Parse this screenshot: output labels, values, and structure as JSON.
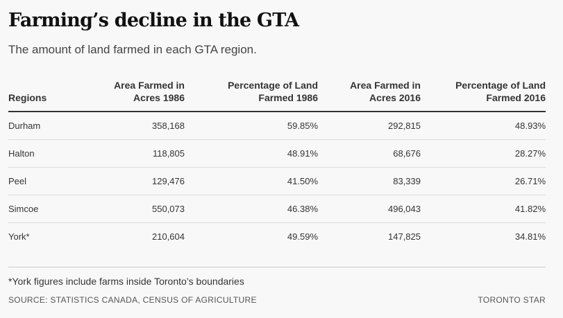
{
  "title": "Farming’s decline in the GTA",
  "subtitle": "The amount of land farmed in each GTA region.",
  "chart_data": {
    "type": "table",
    "columns": [
      "Regions",
      "Area Farmed in Acres 1986",
      "Percentage of Land Farmed 1986",
      "Area Farmed in Acres 2016",
      "Percentage of Land Farmed 2016"
    ],
    "header_lines": [
      [
        "",
        "Regions"
      ],
      [
        "Area Farmed in",
        "Acres 1986"
      ],
      [
        "Percentage of Land",
        "Farmed 1986"
      ],
      [
        "Area Farmed in",
        "Acres 2016"
      ],
      [
        "Percentage of Land",
        "Farmed 2016"
      ]
    ],
    "rows": [
      [
        "Durham",
        "358,168",
        "59.85%",
        "292,815",
        "48.93%"
      ],
      [
        "Halton",
        "118,805",
        "48.91%",
        "68,676",
        "28.27%"
      ],
      [
        "Peel",
        "129,476",
        "41.50%",
        "83,339",
        "26.71%"
      ],
      [
        "Simcoe",
        "550,073",
        "46.38%",
        "496,043",
        "41.82%"
      ],
      [
        "York*",
        "210,604",
        "49.59%",
        "147,825",
        "34.81%"
      ]
    ]
  },
  "footnote": "*York figures include farms inside Toronto’s boundaries",
  "source": "SOURCE: STATISTICS CANADA, CENSUS OF AGRICULTURE",
  "brand": "TORONTO STAR"
}
